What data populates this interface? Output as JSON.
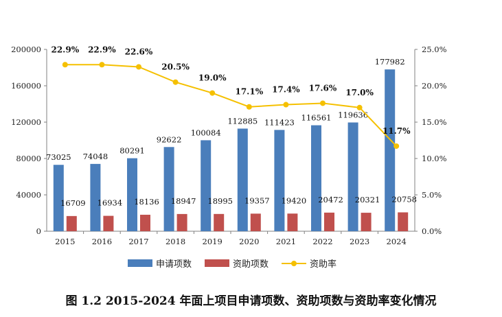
{
  "caption": "图 1.2  2015-2024 年面上项目申请项数、资助项数与资助率变化情况",
  "chart_data": {
    "type": "bar",
    "categories": [
      "2015",
      "2016",
      "2017",
      "2018",
      "2019",
      "2020",
      "2021",
      "2022",
      "2023",
      "2024"
    ],
    "series": [
      {
        "name": "申请项数",
        "kind": "bar",
        "axis": "left",
        "color": "#4a7ebb",
        "values": [
          73025,
          74048,
          80291,
          92622,
          100084,
          112885,
          111423,
          116561,
          119636,
          177982
        ]
      },
      {
        "name": "资助项数",
        "kind": "bar",
        "axis": "left",
        "color": "#c0504d",
        "values": [
          16709,
          16934,
          18136,
          18947,
          18995,
          19357,
          19420,
          20472,
          20321,
          20758
        ]
      },
      {
        "name": "资助率",
        "kind": "line",
        "axis": "right",
        "color": "#f5c000",
        "values": [
          22.9,
          22.9,
          22.6,
          20.5,
          19.0,
          17.1,
          17.4,
          17.6,
          17.0,
          11.7
        ],
        "labels": [
          "22.9%",
          "22.9%",
          "22.6%",
          "20.5%",
          "19.0%",
          "17.1%",
          "17.4%",
          "17.6%",
          "17.0%",
          "11.7%"
        ]
      }
    ],
    "y_left": {
      "ylim": [
        0,
        200000
      ],
      "ticks": [
        "0",
        "40000",
        "80000",
        "120000",
        "160000",
        "200000"
      ]
    },
    "y_right": {
      "ylim": [
        0,
        25
      ],
      "ticks": [
        "0.0%",
        "5.0%",
        "10.0%",
        "15.0%",
        "20.0%",
        "25.0%"
      ]
    },
    "grid": false,
    "legend_position": "bottom"
  }
}
